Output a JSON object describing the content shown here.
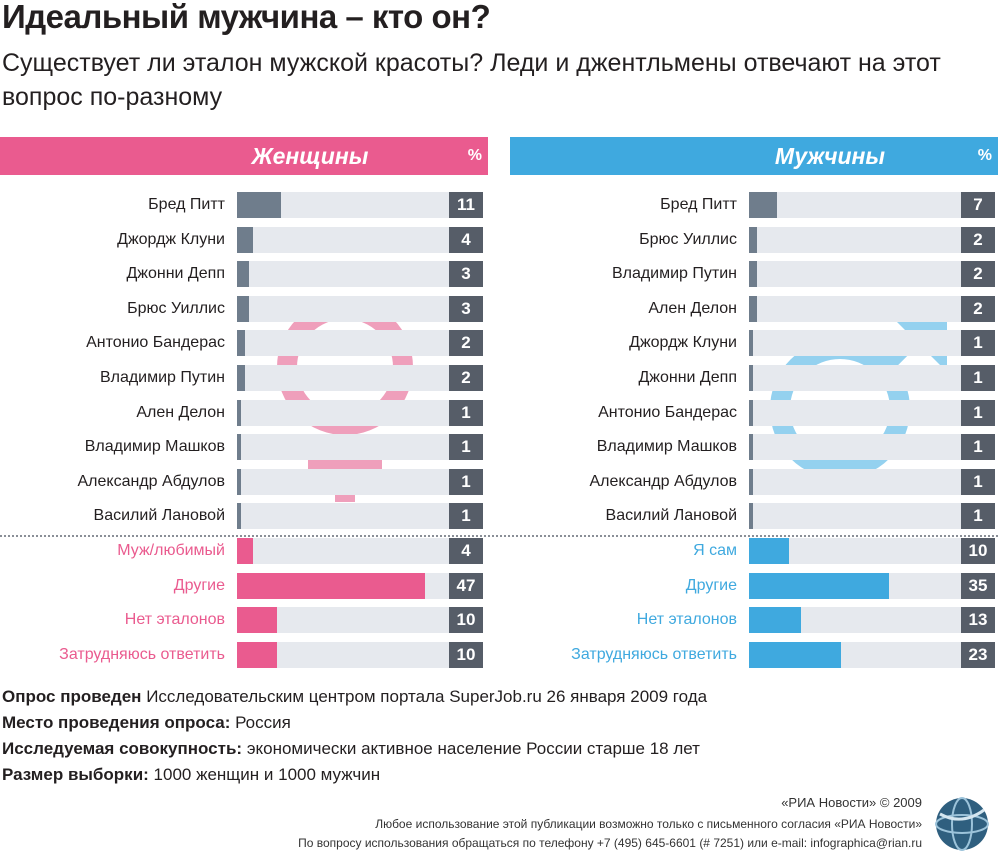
{
  "title": "Идеальный мужчина – кто он?",
  "subtitle": "Существует ли эталон мужской красоты? Леди и джентльмены отвечают на этот вопрос по-разному",
  "colors": {
    "women_accent": "#ea5b8f",
    "men_accent": "#3fa9df",
    "women_symbol": "#ef9fbb",
    "men_symbol": "#94d1ef",
    "celebrity_bar": "#6f7d8c",
    "track": "#e6e9ee",
    "value_box": "#565d68"
  },
  "icons": {
    "women": "female-symbol",
    "men": "male-symbol"
  },
  "chart_data": [
    {
      "type": "bar",
      "title": "Женщины",
      "unit": "%",
      "xlim": [
        0,
        50
      ],
      "categories": [
        "Бред Питт",
        "Джордж Клуни",
        "Джонни Депп",
        "Брюс Уиллис",
        "Антонио Бандерас",
        "Владимир Путин",
        "Ален Делон",
        "Владимир Машков",
        "Александр Абдулов",
        "Василий Лановой",
        "Муж/любимый",
        "Другие",
        "Нет эталонов",
        "Затрудняюсь ответить"
      ],
      "values": [
        11,
        4,
        3,
        3,
        2,
        2,
        1,
        1,
        1,
        1,
        4,
        47,
        10,
        10
      ]
    },
    {
      "type": "bar",
      "title": "Мужчины",
      "unit": "%",
      "xlim": [
        0,
        50
      ],
      "categories": [
        "Бред Питт",
        "Брюс Уиллис",
        "Владимир Путин",
        "Ален Делон",
        "Джордж Клуни",
        "Джонни Депп",
        "Антонио Бандерас",
        "Владимир Машков",
        "Александр Абдулов",
        "Василий Лановой",
        "Я сам",
        "Другие",
        "Нет эталонов",
        "Затрудняюсь ответить"
      ],
      "values": [
        7,
        2,
        2,
        2,
        1,
        1,
        1,
        1,
        1,
        1,
        10,
        35,
        13,
        23
      ]
    }
  ],
  "notes": [
    {
      "label": "Опрос проведен",
      "text": "Исследовательским центром портала SuperJob.ru 26 января 2009 года"
    },
    {
      "label": "Место проведения опроса:",
      "text": "Россия"
    },
    {
      "label": "Исследуемая совокупность:",
      "text": "экономически активное население России старше 18 лет"
    },
    {
      "label": "Размер выборки:",
      "text": "1000 женщин и 1000 мужчин"
    }
  ],
  "credits": [
    "«РИА Новости» © 2009",
    "Любое использование этой публикации возможно только с письменного согласия «РИА Новости»",
    "По вопросу использования обращаться по телефону +7 (495) 645-6601 (# 7251) или e-mail: infographica@rian.ru"
  ]
}
